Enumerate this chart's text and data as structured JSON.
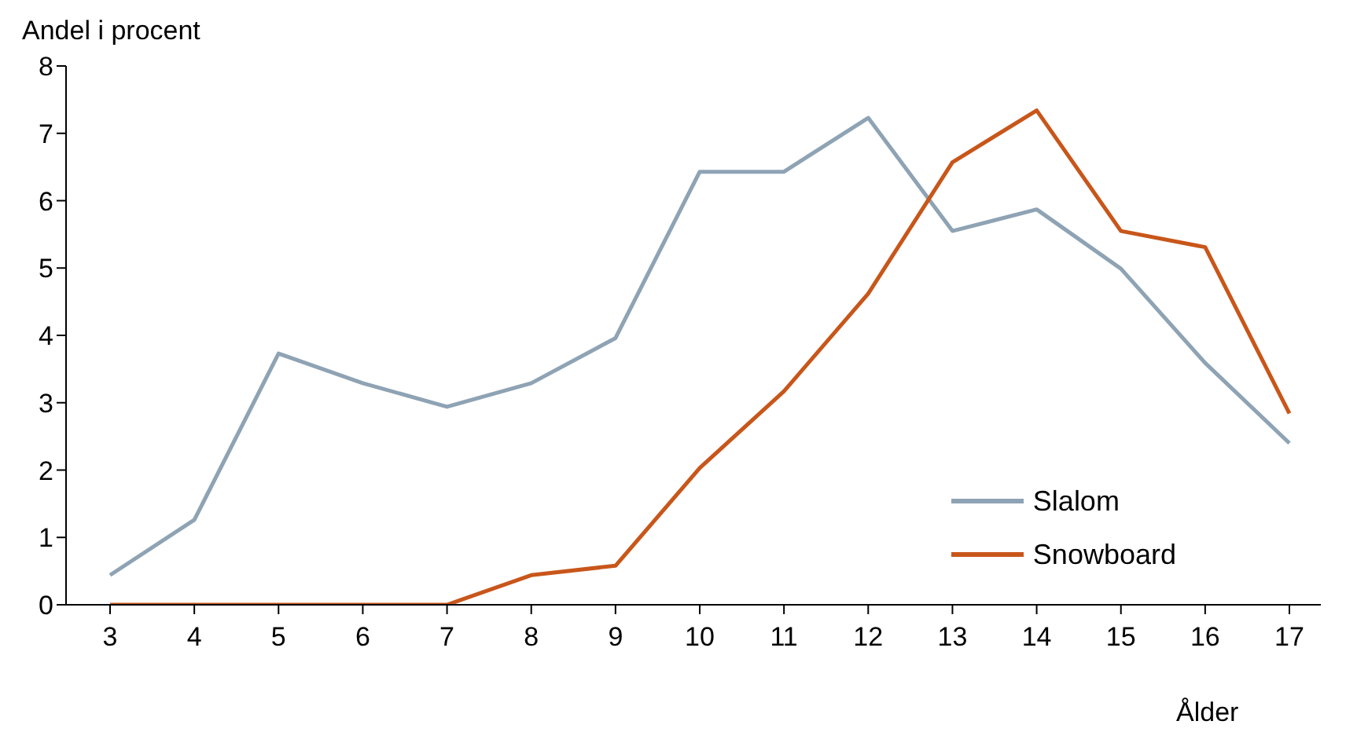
{
  "chart_data": {
    "type": "line",
    "ylabel": "Andel i procent",
    "xlabel": "Ålder",
    "categories": [
      "3",
      "4",
      "5",
      "6",
      "7",
      "8",
      "9",
      "10",
      "11",
      "12",
      "13",
      "14",
      "15",
      "16",
      "17"
    ],
    "series": [
      {
        "name": "Slalom",
        "color": "#8ea3b4",
        "values": [
          0.44,
          1.26,
          3.73,
          3.29,
          2.94,
          3.29,
          3.96,
          6.43,
          6.43,
          7.23,
          5.55,
          5.87,
          4.99,
          3.59,
          2.4
        ]
      },
      {
        "name": "Snowboard",
        "color": "#c8561a",
        "values": [
          0,
          0,
          0,
          0,
          0,
          0.44,
          0.58,
          2.03,
          3.17,
          4.62,
          6.57,
          7.34,
          5.55,
          5.31,
          2.84
        ]
      }
    ],
    "ylim": [
      0,
      8
    ],
    "yticks": [
      0,
      1,
      2,
      3,
      4,
      5,
      6,
      7,
      8
    ],
    "legend": "bottom right",
    "marker": "none",
    "line_style": "solid"
  }
}
